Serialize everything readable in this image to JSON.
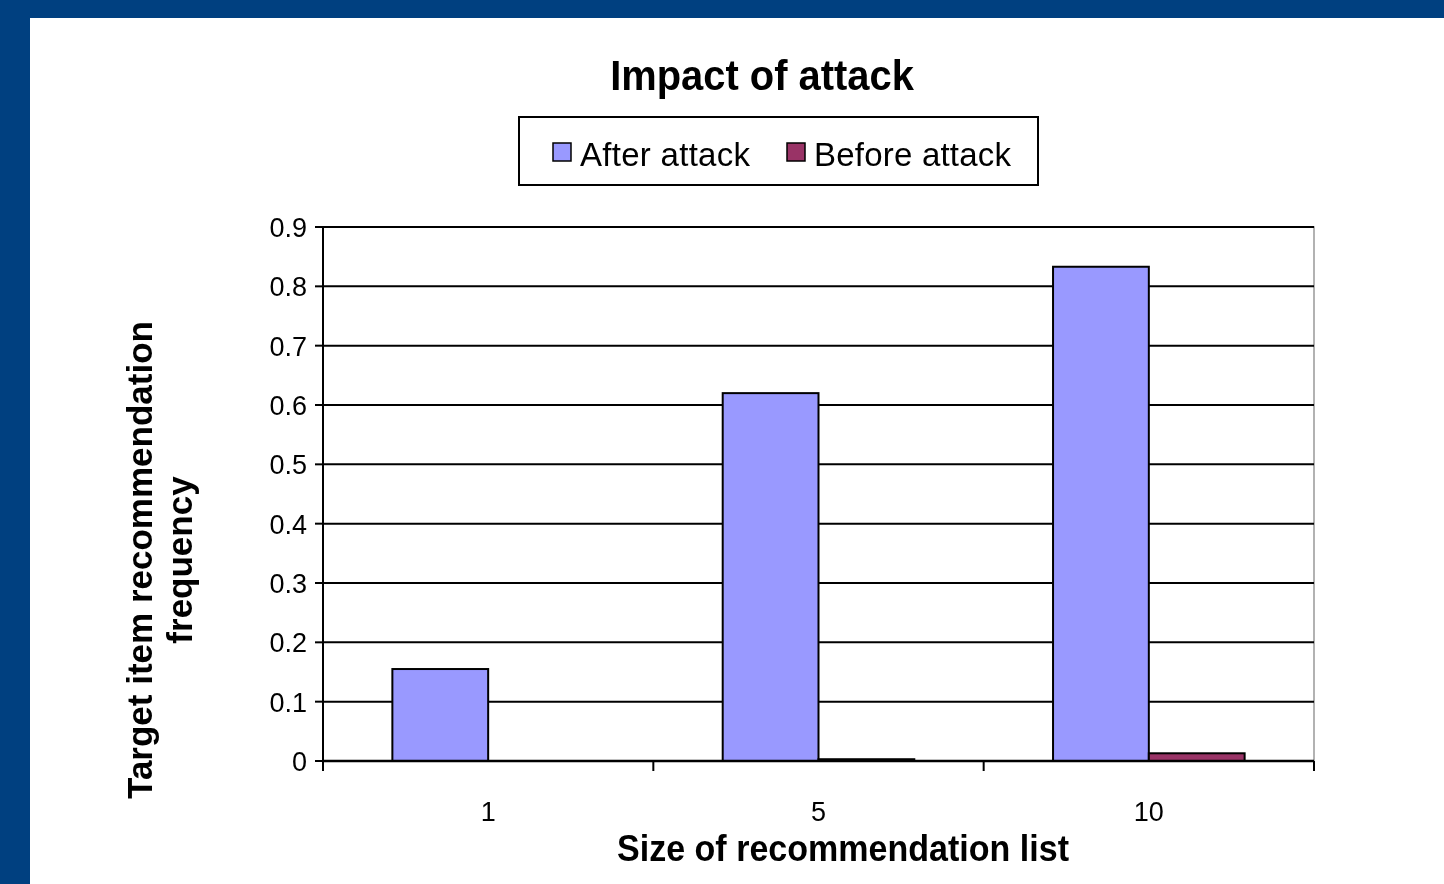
{
  "chart_data": {
    "type": "bar",
    "title": "Impact of attack",
    "xlabel": "Size of recommendation  list",
    "ylabel": "Target item recommendation frequency",
    "categories": [
      "1",
      "5",
      "10"
    ],
    "series": [
      {
        "name": "After attack",
        "color": "#9999ff",
        "values": [
          0.155,
          0.62,
          0.833
        ]
      },
      {
        "name": "Before attack",
        "color": "#993366",
        "values": [
          0,
          0.003,
          0.013
        ]
      }
    ],
    "ylim": [
      0,
      0.9
    ],
    "yticks": [
      0,
      0.1,
      0.2,
      0.3,
      0.4,
      0.5,
      0.6,
      0.7,
      0.8,
      0.9
    ],
    "grid": "y",
    "legend": "top"
  }
}
